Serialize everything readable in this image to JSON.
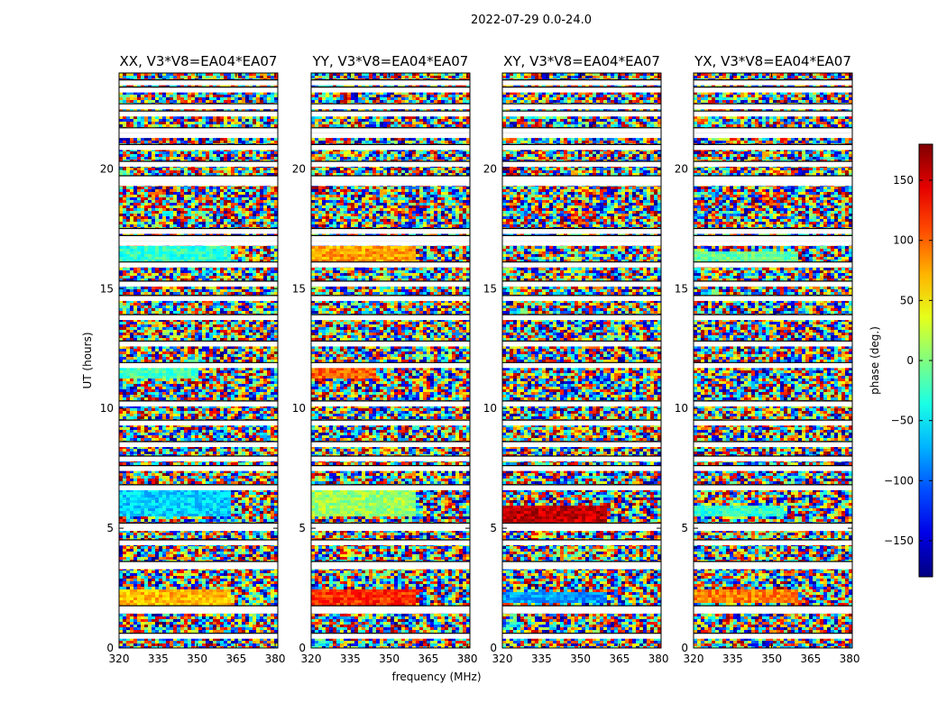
{
  "chart_data": {
    "type": "heatmap",
    "title": "2022-07-29 0.0-24.0",
    "xlabel": "frequency (MHz)",
    "ylabel": "UT (hours)",
    "xlim": [
      320,
      381
    ],
    "ylim": [
      0,
      24
    ],
    "xticks": [
      320,
      335,
      350,
      365,
      380
    ],
    "yticks": [
      0,
      5,
      10,
      15,
      20
    ],
    "colorbar": {
      "label": "phase (deg.)",
      "range": [
        -180,
        180
      ],
      "ticks": [
        150,
        100,
        50,
        0,
        -50,
        -100,
        -150
      ],
      "tick_labels": [
        "150",
        "100",
        "50",
        "0",
        "−50",
        "−100",
        "−150"
      ],
      "colormap": "jet"
    },
    "panels": [
      {
        "title": "XX, V3*V8=EA04*EA07",
        "coherent_blocks": [
          {
            "ut": [
              16.0,
              16.8
            ],
            "f_end": 363,
            "phase": -30
          },
          {
            "ut": [
              11.3,
              11.7
            ],
            "f_end": 350,
            "phase": -20
          },
          {
            "ut": [
              5.5,
              6.7
            ],
            "f_end": 363,
            "phase": -60
          },
          {
            "ut": [
              1.8,
              2.5
            ],
            "f_end": 363,
            "phase": 70
          }
        ]
      },
      {
        "title": "YY, V3*V8=EA04*EA07",
        "coherent_blocks": [
          {
            "ut": [
              16.0,
              16.8
            ],
            "f_end": 360,
            "phase": 80
          },
          {
            "ut": [
              11.3,
              11.7
            ],
            "f_end": 345,
            "phase": 100
          },
          {
            "ut": [
              5.5,
              6.7
            ],
            "f_end": 360,
            "phase": 10
          },
          {
            "ut": [
              1.8,
              2.5
            ],
            "f_end": 360,
            "phase": 120
          }
        ]
      },
      {
        "title": "XY, V3*V8=EA04*EA07",
        "coherent_blocks": [
          {
            "ut": [
              5.2,
              6.0
            ],
            "f_end": 360,
            "phase": 155
          },
          {
            "ut": [
              1.9,
              2.4
            ],
            "f_end": 360,
            "phase": -80
          }
        ]
      },
      {
        "title": "YX, V3*V8=EA04*EA07",
        "coherent_blocks": [
          {
            "ut": [
              16.0,
              16.6
            ],
            "f_end": 360,
            "phase": -10
          },
          {
            "ut": [
              5.5,
              6.0
            ],
            "f_end": 355,
            "phase": -30
          },
          {
            "ut": [
              1.9,
              2.5
            ],
            "f_end": 360,
            "phase": 90
          }
        ]
      }
    ],
    "flagged_ut_rows": [
      0.5,
      1.55,
      1.65,
      3.4,
      3.5,
      4.4,
      5.0,
      5.1,
      6.7,
      7.5,
      7.9,
      8.5,
      9.4,
      10.2,
      11.8,
      12.7,
      13.8,
      14.6,
      15.2,
      16.0,
      16.9,
      17.1,
      17.4,
      19.4,
      19.6,
      20.2,
      20.9,
      21.4,
      21.6,
      22.3,
      22.6,
      23.3,
      23.6
    ]
  }
}
